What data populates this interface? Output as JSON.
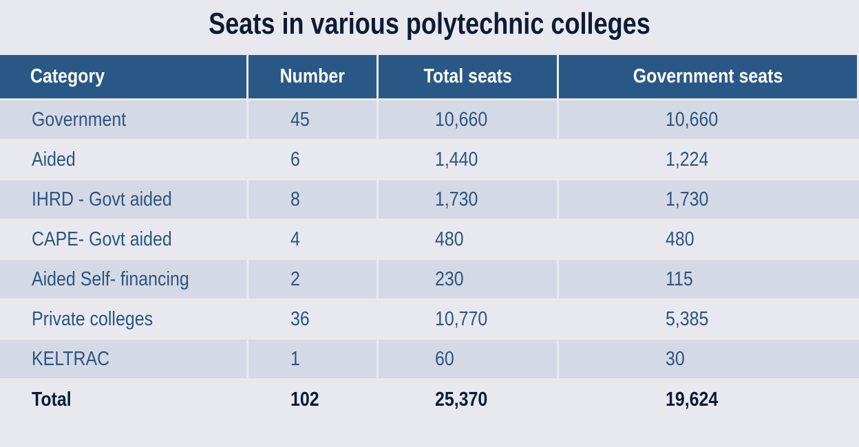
{
  "title": "Seats in various polytechnic colleges",
  "colors": {
    "header_bg": "#2a5886",
    "header_text": "#ffffff",
    "row_shaded_bg": "#d5d9e6",
    "row_plain_bg": "#e8e9ef",
    "row_text": "#2b5580",
    "title_text": "#0d1b33",
    "total_text": "#0d1b33"
  },
  "chart_data": {
    "type": "table",
    "title": "Seats in various polytechnic colleges",
    "columns": [
      "Category",
      "Number",
      "Total seats",
      "Government seats"
    ],
    "rows": [
      [
        "Government",
        "45",
        "10,660",
        "10,660"
      ],
      [
        "Aided",
        "6",
        "1,440",
        "1,224"
      ],
      [
        "IHRD - Govt aided",
        "8",
        "1,730",
        "1,730"
      ],
      [
        "CAPE- Govt aided",
        "4",
        "480",
        "480"
      ],
      [
        "Aided Self- financing",
        "2",
        "230",
        "115"
      ],
      [
        "Private colleges",
        "36",
        "10,770",
        "5,385"
      ],
      [
        "KELTRAC",
        "1",
        "60",
        "30"
      ]
    ],
    "total": [
      "Total",
      "102",
      "25,370",
      "19,624"
    ]
  }
}
